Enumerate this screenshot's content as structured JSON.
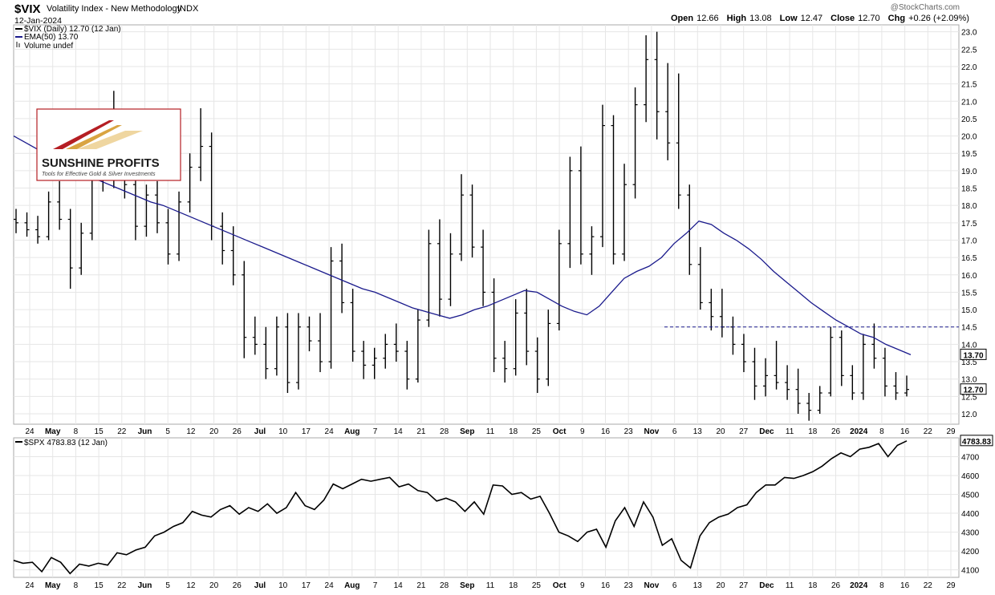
{
  "header": {
    "symbol": "$VIX",
    "name": "Volatility Index - New Methodology",
    "exchange": "INDX",
    "date": "12-Jan-2024",
    "copyright": "@StockCharts.com",
    "ohlc": [
      {
        "label": "Open",
        "value": "12.66"
      },
      {
        "label": "High",
        "value": "13.08"
      },
      {
        "label": "Low",
        "value": "12.47"
      },
      {
        "label": "Close",
        "value": "12.70"
      },
      {
        "label": "Chg",
        "value": "+0.26 (+2.09%)"
      }
    ]
  },
  "legend": {
    "vix": "$VIX (Daily) 12.70 (12 Jan)",
    "ema": "EMA(50) 13.70",
    "volume": "Volume undef",
    "spx": "$SPX 4783.83 (12 Jan)"
  },
  "logo": {
    "brand": "SUNSHINE PROFITS",
    "tagline": "Tools for Effective Gold & Silver Investments"
  },
  "colors": {
    "ema": "#1a1a8c",
    "bars": "#000000",
    "grid": "#e6e6e6",
    "logo_red": "#b51e23",
    "logo_gold": "#d9a441"
  },
  "chart_data": [
    {
      "type": "ohlc",
      "series_name": "$VIX",
      "ylim": [
        11.7,
        23.2
      ],
      "yticks": [
        "12.0",
        "12.5",
        "13.0",
        "13.5",
        "14.0",
        "14.5",
        "15.0",
        "15.5",
        "16.0",
        "16.5",
        "17.0",
        "17.5",
        "18.0",
        "18.5",
        "19.0",
        "19.5",
        "20.0",
        "20.5",
        "21.0",
        "21.5",
        "22.0",
        "22.5",
        "23.0"
      ],
      "last_value_label": "12.70",
      "ema_value_label": "13.70",
      "resistance_level": 14.5,
      "xlabels": [
        "24",
        "May",
        "8",
        "15",
        "22",
        "Jun",
        "5",
        "12",
        "20",
        "26",
        "Jul",
        "10",
        "17",
        "24",
        "Aug",
        "7",
        "14",
        "21",
        "28",
        "Sep",
        "11",
        "18",
        "25",
        "Oct",
        "9",
        "16",
        "23",
        "Nov",
        "6",
        "13",
        "20",
        "27",
        "Dec",
        "11",
        "18",
        "26",
        "2024",
        "8",
        "16",
        "22",
        "29"
      ],
      "ema50": [
        20.0,
        19.8,
        19.6,
        19.4,
        19.2,
        19.0,
        18.85,
        18.7,
        18.55,
        18.4,
        18.25,
        18.1,
        18.0,
        17.85,
        17.7,
        17.55,
        17.4,
        17.25,
        17.1,
        16.95,
        16.8,
        16.65,
        16.5,
        16.35,
        16.2,
        16.05,
        15.9,
        15.75,
        15.6,
        15.5,
        15.35,
        15.2,
        15.05,
        14.95,
        14.85,
        14.75,
        14.85,
        15.0,
        15.1,
        15.25,
        15.4,
        15.55,
        15.5,
        15.3,
        15.1,
        14.95,
        14.85,
        15.1,
        15.5,
        15.9,
        16.1,
        16.25,
        16.5,
        16.9,
        17.2,
        17.55,
        17.45,
        17.2,
        17.0,
        16.75,
        16.45,
        16.1,
        15.8,
        15.5,
        15.2,
        14.95,
        14.7,
        14.5,
        14.3,
        14.2,
        14.0,
        13.85,
        13.7
      ],
      "ohlc": [
        [
          17.6,
          17.9,
          17.2,
          17.5
        ],
        [
          17.5,
          17.8,
          17.1,
          17.3
        ],
        [
          17.3,
          17.7,
          16.9,
          17.1
        ],
        [
          17.1,
          18.4,
          17.0,
          18.1
        ],
        [
          18.1,
          18.7,
          17.3,
          17.6
        ],
        [
          17.6,
          17.9,
          15.6,
          16.2
        ],
        [
          16.2,
          17.5,
          16.0,
          17.2
        ],
        [
          17.2,
          19.6,
          17.0,
          19.3
        ],
        [
          19.3,
          19.7,
          18.4,
          18.9
        ],
        [
          18.9,
          21.3,
          18.5,
          19.8
        ],
        [
          19.8,
          20.2,
          18.2,
          18.6
        ],
        [
          18.6,
          18.9,
          17.0,
          17.4
        ],
        [
          17.4,
          18.6,
          17.1,
          18.3
        ],
        [
          18.3,
          18.7,
          17.2,
          17.5
        ],
        [
          17.5,
          17.9,
          16.3,
          16.6
        ],
        [
          16.6,
          18.4,
          16.4,
          18.1
        ],
        [
          18.1,
          19.5,
          17.8,
          19.1
        ],
        [
          19.1,
          20.8,
          18.7,
          19.7
        ],
        [
          19.7,
          20.1,
          17.0,
          17.4
        ],
        [
          17.4,
          17.8,
          16.3,
          16.7
        ],
        [
          16.7,
          17.4,
          15.7,
          16.0
        ],
        [
          16.0,
          16.4,
          13.6,
          14.2
        ],
        [
          14.2,
          14.8,
          13.7,
          14.0
        ],
        [
          14.0,
          14.5,
          13.0,
          13.3
        ],
        [
          13.3,
          14.8,
          13.1,
          14.5
        ],
        [
          14.5,
          14.9,
          12.6,
          12.9
        ],
        [
          12.9,
          14.9,
          12.7,
          14.5
        ],
        [
          14.5,
          14.8,
          13.8,
          14.1
        ],
        [
          14.1,
          14.9,
          13.2,
          13.5
        ],
        [
          13.5,
          16.8,
          13.3,
          16.4
        ],
        [
          16.4,
          16.9,
          14.9,
          15.2
        ],
        [
          15.2,
          15.6,
          13.5,
          13.8
        ],
        [
          13.8,
          14.1,
          13.0,
          13.4
        ],
        [
          13.4,
          13.9,
          13.0,
          13.6
        ],
        [
          13.6,
          14.3,
          13.3,
          14.0
        ],
        [
          14.0,
          14.6,
          13.5,
          13.8
        ],
        [
          13.8,
          14.1,
          12.7,
          13.0
        ],
        [
          13.0,
          15.0,
          12.9,
          14.7
        ],
        [
          14.7,
          17.3,
          14.5,
          16.9
        ],
        [
          16.9,
          17.6,
          14.8,
          15.3
        ],
        [
          15.3,
          17.2,
          15.1,
          16.6
        ],
        [
          16.6,
          18.9,
          16.4,
          18.3
        ],
        [
          18.3,
          18.6,
          16.5,
          16.8
        ],
        [
          16.8,
          17.3,
          15.1,
          15.5
        ],
        [
          15.5,
          15.9,
          13.2,
          13.6
        ],
        [
          13.6,
          14.1,
          12.9,
          13.3
        ],
        [
          13.3,
          15.3,
          13.1,
          14.9
        ],
        [
          14.9,
          15.6,
          13.4,
          13.8
        ],
        [
          13.8,
          14.2,
          12.6,
          13.0
        ],
        [
          13.0,
          15.0,
          12.8,
          14.6
        ],
        [
          14.6,
          17.3,
          14.4,
          16.9
        ],
        [
          16.9,
          19.4,
          16.2,
          19.0
        ],
        [
          19.0,
          19.7,
          16.3,
          16.6
        ],
        [
          16.6,
          17.4,
          16.0,
          17.1
        ],
        [
          17.1,
          20.9,
          16.8,
          20.3
        ],
        [
          20.3,
          20.6,
          16.3,
          16.6
        ],
        [
          16.6,
          19.2,
          16.4,
          18.6
        ],
        [
          18.6,
          21.4,
          18.2,
          20.9
        ],
        [
          20.9,
          22.9,
          20.4,
          22.2
        ],
        [
          22.2,
          23.0,
          19.9,
          20.7
        ],
        [
          20.7,
          22.1,
          19.3,
          19.8
        ],
        [
          19.8,
          21.8,
          17.9,
          18.3
        ],
        [
          18.3,
          18.6,
          16.0,
          16.3
        ],
        [
          16.3,
          16.8,
          15.0,
          15.2
        ],
        [
          15.2,
          15.6,
          14.4,
          14.8
        ],
        [
          14.8,
          15.6,
          14.2,
          14.5
        ],
        [
          14.5,
          14.8,
          13.7,
          14.0
        ],
        [
          14.0,
          14.3,
          13.2,
          13.5
        ],
        [
          13.5,
          13.9,
          12.4,
          12.8
        ],
        [
          12.8,
          13.6,
          12.5,
          13.1
        ],
        [
          13.1,
          14.1,
          12.7,
          12.9
        ],
        [
          12.9,
          13.4,
          12.4,
          12.7
        ],
        [
          12.7,
          13.3,
          12.0,
          12.3
        ],
        [
          12.3,
          12.6,
          11.8,
          12.1
        ],
        [
          12.1,
          12.8,
          12.0,
          12.6
        ],
        [
          12.6,
          14.5,
          12.5,
          14.2
        ],
        [
          14.2,
          14.4,
          12.8,
          13.1
        ],
        [
          13.1,
          13.4,
          12.4,
          12.6
        ],
        [
          12.6,
          14.3,
          12.4,
          14.0
        ],
        [
          14.0,
          14.6,
          13.3,
          13.6
        ],
        [
          13.6,
          13.9,
          12.5,
          12.8
        ],
        [
          12.8,
          13.2,
          12.4,
          12.6
        ],
        [
          12.6,
          13.1,
          12.5,
          12.7
        ]
      ]
    },
    {
      "type": "line",
      "series_name": "$SPX",
      "ylim": [
        4060,
        4800
      ],
      "yticks": [
        "4100",
        "4200",
        "4300",
        "4400",
        "4500",
        "4600",
        "4700"
      ],
      "last_value_label": "4783.83",
      "xlabels": [
        "24",
        "May",
        "8",
        "15",
        "22",
        "Jun",
        "5",
        "12",
        "20",
        "26",
        "Jul",
        "10",
        "17",
        "24",
        "Aug",
        "7",
        "14",
        "21",
        "28",
        "Sep",
        "11",
        "18",
        "25",
        "Oct",
        "9",
        "16",
        "23",
        "Nov",
        "6",
        "13",
        "20",
        "27",
        "Dec",
        "11",
        "18",
        "26",
        "2024",
        "8",
        "16",
        "22",
        "29"
      ],
      "values": [
        4150,
        4135,
        4140,
        4090,
        4165,
        4140,
        4080,
        4130,
        4120,
        4135,
        4125,
        4190,
        4180,
        4205,
        4220,
        4280,
        4300,
        4330,
        4350,
        4410,
        4390,
        4380,
        4420,
        4440,
        4395,
        4430,
        4410,
        4450,
        4400,
        4430,
        4510,
        4440,
        4420,
        4470,
        4555,
        4530,
        4555,
        4580,
        4570,
        4580,
        4590,
        4540,
        4555,
        4520,
        4510,
        4465,
        4480,
        4460,
        4410,
        4460,
        4395,
        4550,
        4545,
        4500,
        4510,
        4475,
        4490,
        4400,
        4300,
        4280,
        4250,
        4300,
        4315,
        4220,
        4360,
        4430,
        4330,
        4460,
        4380,
        4230,
        4265,
        4150,
        4110,
        4280,
        4350,
        4380,
        4395,
        4430,
        4445,
        4510,
        4550,
        4550,
        4590,
        4585,
        4600,
        4620,
        4650,
        4690,
        4720,
        4700,
        4740,
        4750,
        4770,
        4700,
        4760,
        4783.83
      ]
    }
  ]
}
